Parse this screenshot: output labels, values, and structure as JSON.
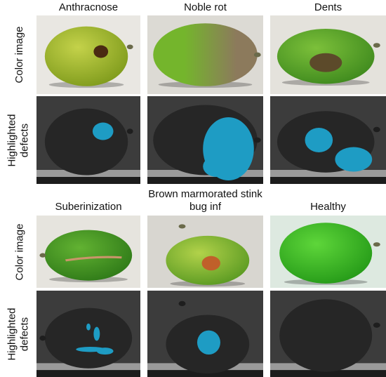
{
  "blocks": [
    {
      "columns": [
        "Anthracnose",
        "Noble rot",
        "Dents"
      ],
      "rows": [
        "Color image",
        "Highlighted defects"
      ]
    },
    {
      "columns": [
        "Suberinization",
        "Brown marmorated stink bug inf",
        "Healthy"
      ],
      "rows": [
        "Color image",
        "Highlighted defects"
      ]
    }
  ]
}
